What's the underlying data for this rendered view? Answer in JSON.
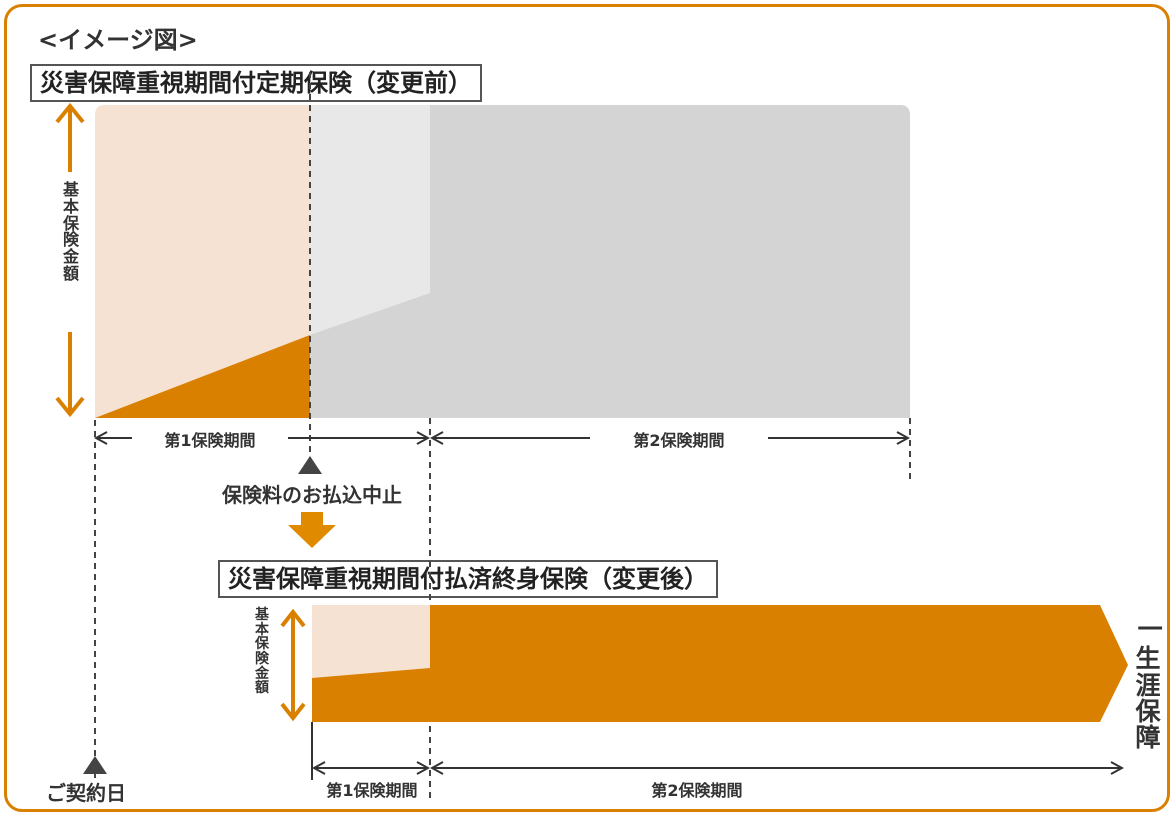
{
  "heading": "<イメージ図>",
  "before": {
    "title": "災害保障重視期間付定期保険（変更前）",
    "amount_label": "基本保険金額",
    "period1_label": "第1保険期間",
    "period2_label": "第2保険期間"
  },
  "stop_label": "保険料のお払込中止",
  "after": {
    "title": "災害保障重視期間付払済終身保険（変更後）",
    "amount_label": "基本保険金額",
    "period1_label": "第1保険期間",
    "period2_label": "第2保険期間",
    "lifetime_label": "一生涯保障"
  },
  "contract_date_label": "ご契約日",
  "colors": {
    "orange": "#d98000",
    "light_orange": "#f6e2d2",
    "gray": "#d4d4d4",
    "light_gray": "#e8e8e8",
    "marker": "#444444"
  }
}
